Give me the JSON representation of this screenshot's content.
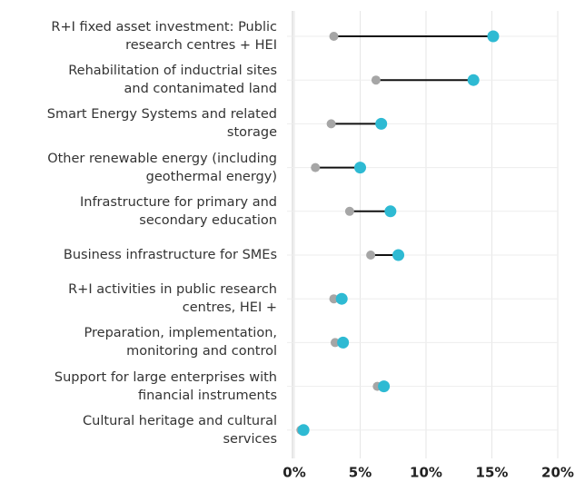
{
  "chart_data": {
    "type": "dumbbell",
    "categories": [
      "R+I fixed asset investment: Public\nresearch centres + HEI",
      "Rehabilitation of inductrial sites\nand contanimated land",
      "Smart Energy Systems and related\nstorage",
      "Other renewable energy (including\ngeothermal energy)",
      "Infrastructure for primary and\nsecondary education",
      "Business infrastructure for SMEs",
      "R+I activities in public research\ncentres, HEI +",
      "Preparation, implementation,\nmonitoring and control",
      "Support for large enterprises with\nfinancial instruments",
      "Cultural heritage and cultural\nservices"
    ],
    "series": [
      {
        "color": "#a6a6a6",
        "values": [
          3.0,
          6.2,
          2.8,
          1.6,
          4.2,
          5.8,
          3.0,
          3.1,
          6.3,
          0.5
        ]
      },
      {
        "color": "#2ebad3",
        "values": [
          15.1,
          13.6,
          6.6,
          5.0,
          7.3,
          7.9,
          3.6,
          3.7,
          6.8,
          0.7
        ]
      }
    ],
    "connector_color": "#111111",
    "xlim": [
      0,
      20
    ],
    "xticks": [
      {
        "value": 0,
        "label": "0%"
      },
      {
        "value": 5,
        "label": "5%"
      },
      {
        "value": 10,
        "label": "10%"
      },
      {
        "value": 15,
        "label": "15%"
      },
      {
        "value": 20,
        "label": "20%"
      }
    ],
    "grid": true
  }
}
